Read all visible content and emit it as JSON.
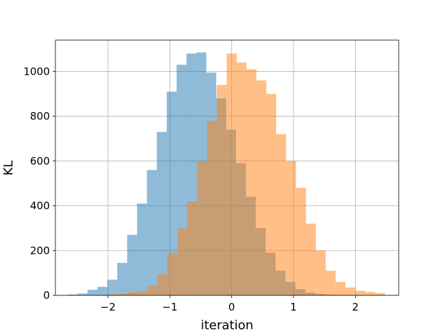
{
  "chart_data": {
    "type": "histogram",
    "title": "",
    "xlabel": "iteration",
    "ylabel": "KL",
    "xlim": [
      -2.85,
      2.7
    ],
    "ylim": [
      0,
      1140
    ],
    "xticks": [
      -2,
      -1,
      0,
      1,
      2
    ],
    "xtick_labels": [
      "−2",
      "−1",
      "0",
      "1",
      "2"
    ],
    "yticks": [
      0,
      200,
      400,
      600,
      800,
      1000
    ],
    "ytick_labels": [
      "0",
      "200",
      "400",
      "600",
      "800",
      "1000"
    ],
    "grid": true,
    "series": [
      {
        "color": "#1f77b4",
        "alpha": 0.5,
        "bin_edges": [
          -2.65,
          -2.49,
          -2.33,
          -2.17,
          -2.01,
          -1.85,
          -1.69,
          -1.53,
          -1.37,
          -1.21,
          -1.05,
          -0.89,
          -0.73,
          -0.57,
          -0.41,
          -0.25,
          -0.09,
          0.07,
          0.23,
          0.39,
          0.55,
          0.71,
          0.87,
          1.03,
          1.19,
          1.35,
          1.51,
          1.67,
          1.83
        ],
        "counts": [
          4,
          8,
          25,
          38,
          70,
          145,
          270,
          410,
          560,
          730,
          910,
          1030,
          1080,
          1085,
          995,
          880,
          740,
          590,
          440,
          300,
          190,
          110,
          60,
          28,
          12,
          6,
          3,
          1
        ]
      },
      {
        "color": "#ff7f0e",
        "alpha": 0.5,
        "bin_edges": [
          -2.16,
          -2.0,
          -1.84,
          -1.68,
          -1.52,
          -1.36,
          -1.2,
          -1.04,
          -0.88,
          -0.72,
          -0.56,
          -0.4,
          -0.24,
          -0.08,
          0.08,
          0.24,
          0.4,
          0.56,
          0.72,
          0.88,
          1.04,
          1.2,
          1.36,
          1.52,
          1.68,
          1.84,
          2.0,
          2.16,
          2.32,
          2.48
        ],
        "counts": [
          2,
          4,
          7,
          14,
          20,
          45,
          95,
          190,
          300,
          420,
          600,
          780,
          940,
          1080,
          1040,
          1010,
          960,
          900,
          720,
          600,
          480,
          320,
          200,
          110,
          60,
          35,
          20,
          15,
          10
        ]
      }
    ]
  }
}
